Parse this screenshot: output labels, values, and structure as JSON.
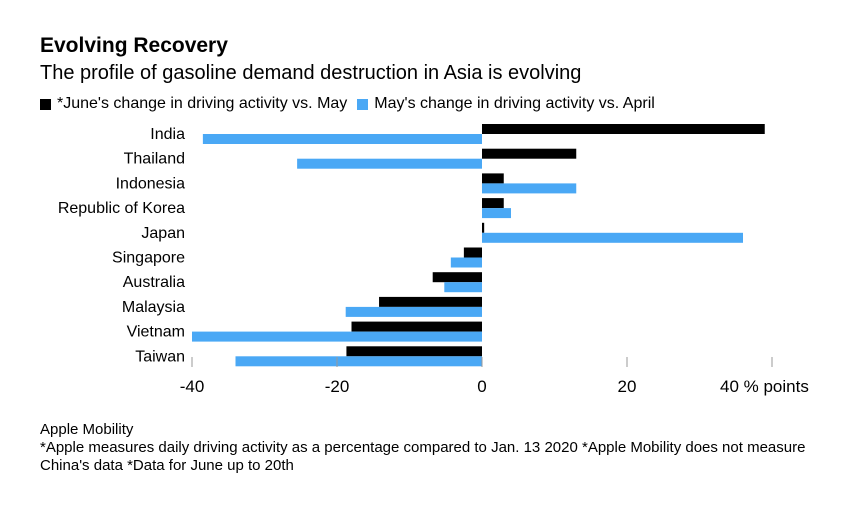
{
  "title": "Evolving Recovery",
  "subtitle": "The profile of gasoline demand destruction in Asia is evolving",
  "legend": [
    {
      "label": "*June's change in driving activity vs. May",
      "color": "#000000"
    },
    {
      "label": "May's change in driving activity vs. April",
      "color": "#4aa8f5"
    }
  ],
  "footer": {
    "source": "Apple Mobility",
    "note": "*Apple measures daily driving activity as a percentage compared to Jan. 13 2020 *Apple Mobility does not measure China's data *Data for June up to 20th"
  },
  "chart_data": {
    "type": "bar",
    "orientation": "horizontal",
    "title": "Evolving Recovery",
    "categories": [
      "India",
      "Thailand",
      "Indonesia",
      "Republic of Korea",
      "Japan",
      "Singapore",
      "Australia",
      "Malaysia",
      "Vietnam",
      "Taiwan"
    ],
    "series": [
      {
        "name": "*June's change in driving activity vs. May",
        "color": "#000000",
        "values": [
          39,
          13,
          3,
          3,
          0.3,
          -2.5,
          -6.8,
          -14.2,
          -18,
          -18.7
        ]
      },
      {
        "name": "May's change in driving activity vs. April",
        "color": "#4aa8f5",
        "values": [
          -38.5,
          -25.5,
          13,
          4,
          36,
          -4.3,
          -5.2,
          -18.8,
          -40,
          -34
        ]
      }
    ],
    "xlim": [
      -40,
      40
    ],
    "xticks": [
      -40,
      -20,
      0,
      20,
      40
    ],
    "xtick_labels": [
      "-40",
      "-20",
      "0",
      "20",
      "40 % points"
    ],
    "xlabel": "% points",
    "ylabel": ""
  }
}
